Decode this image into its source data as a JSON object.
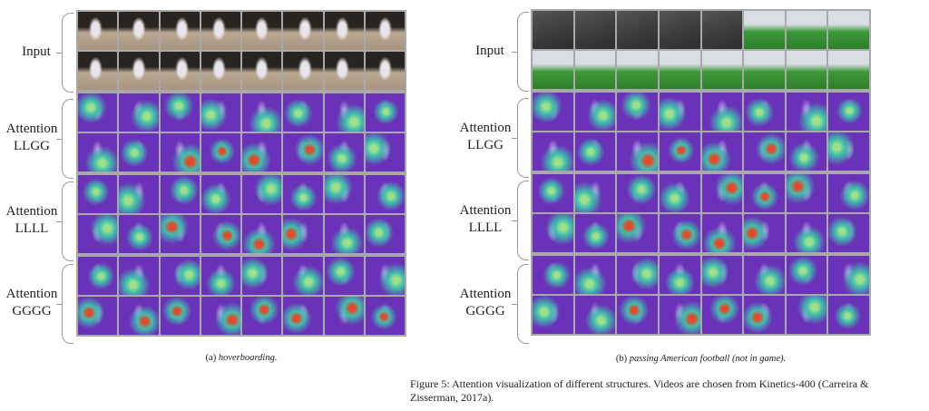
{
  "figure": {
    "panels": [
      {
        "id": "a",
        "groups": [
          "Input",
          "Attention LLGG",
          "Attention LLLL",
          "Attention GGGG"
        ],
        "subcaption_prefix": "(a)",
        "subcaption_title": "hoverboarding."
      },
      {
        "id": "b",
        "groups": [
          "Input",
          "Attention LLGG",
          "Attention LLLL",
          "Attention GGGG"
        ],
        "subcaption_prefix": "(b)",
        "subcaption_title": "passing American football (not in game)."
      }
    ],
    "caption": "Figure 5: Attention visualization of different structures. Videos are chosen from Kinetics-400 (Carreira & Zisserman, 2017a).",
    "colors": {
      "attention_base": "#6a32b8",
      "attention_hot": "#e34a2a",
      "attention_mid": "#3fbfae",
      "frame_border": "#a9a9a9"
    }
  }
}
